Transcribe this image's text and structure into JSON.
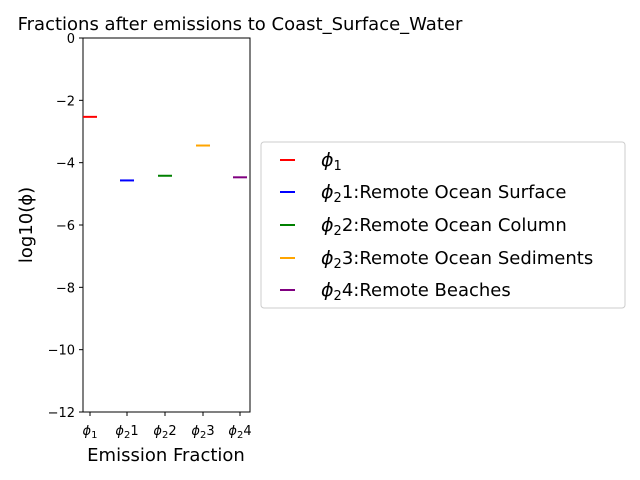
{
  "chart_data": {
    "type": "scatter",
    "title": "Fractions after emissions to Coast_Surface_Water",
    "xlabel": "Emission Fraction",
    "ylabel": "log10(ϕ)",
    "ylim": [
      -12,
      0
    ],
    "yticks": [
      "0",
      "−2",
      "−4",
      "−6",
      "−8",
      "−10",
      "−12"
    ],
    "ytick_values": [
      0,
      -2,
      -4,
      -6,
      -8,
      -10,
      -12
    ],
    "categories": [
      {
        "sym": "ϕ",
        "sub": "1",
        "suffix": ""
      },
      {
        "sym": "ϕ",
        "sub": "2",
        "suffix": "1"
      },
      {
        "sym": "ϕ",
        "sub": "2",
        "suffix": "2"
      },
      {
        "sym": "ϕ",
        "sub": "2",
        "suffix": "3"
      },
      {
        "sym": "ϕ",
        "sub": "2",
        "suffix": "4"
      }
    ],
    "series": [
      {
        "legend_sym": "ϕ",
        "legend_sub": "1",
        "legend_text": "",
        "value": -2.53,
        "color": "#ff0000"
      },
      {
        "legend_sym": "ϕ",
        "legend_sub": "2",
        "legend_text": "1:Remote Ocean Surface",
        "value": -4.57,
        "color": "#0000ff"
      },
      {
        "legend_sym": "ϕ",
        "legend_sub": "2",
        "legend_text": "2:Remote Ocean Column",
        "value": -4.42,
        "color": "#008000"
      },
      {
        "legend_sym": "ϕ",
        "legend_sub": "2",
        "legend_text": "3:Remote Ocean Sediments",
        "value": -3.45,
        "color": "#ffa500"
      },
      {
        "legend_sym": "ϕ",
        "legend_sub": "2",
        "legend_text": "4:Remote Beaches",
        "value": -4.47,
        "color": "#800080"
      }
    ],
    "legend_position": "right",
    "grid": false
  }
}
